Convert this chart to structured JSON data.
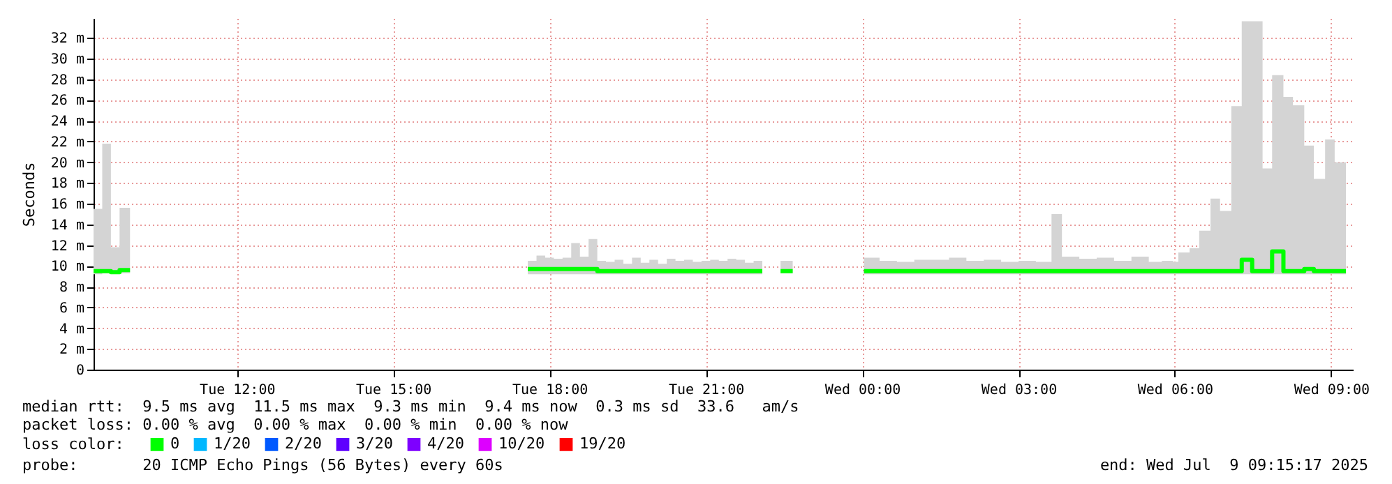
{
  "chart_data": {
    "type": "step",
    "ylabel": "Seconds",
    "legend_title": "loss color:",
    "legend": "bottom",
    "grid": true,
    "xlim": [
      "2025-07-08T09:15",
      "2025-07-09T09:25"
    ],
    "xticks": [
      {
        "value": "2025-07-08T12:00",
        "label": "Tue 12:00"
      },
      {
        "value": "2025-07-08T15:00",
        "label": "Tue 15:00"
      },
      {
        "value": "2025-07-08T18:00",
        "label": "Tue 18:00"
      },
      {
        "value": "2025-07-08T21:00",
        "label": "Tue 21:00"
      },
      {
        "value": "2025-07-09T00:00",
        "label": "Wed 00:00"
      },
      {
        "value": "2025-07-09T03:00",
        "label": "Wed 03:00"
      },
      {
        "value": "2025-07-09T06:00",
        "label": "Wed 06:00"
      },
      {
        "value": "2025-07-09T09:00",
        "label": "Wed 09:00"
      }
    ],
    "ylim": [
      0,
      33.9
    ],
    "yticks": [
      0,
      {
        "value": 2,
        "label": "2 m"
      },
      {
        "value": 4,
        "label": "4 m"
      },
      {
        "value": 6,
        "label": "6 m"
      },
      {
        "value": 8,
        "label": "8 m"
      },
      {
        "value": 10,
        "label": "10 m"
      },
      {
        "value": 12,
        "label": "12 m"
      },
      {
        "value": 14,
        "label": "14 m"
      },
      {
        "value": 16,
        "label": "16 m"
      },
      {
        "value": 18,
        "label": "18 m"
      },
      {
        "value": 20,
        "label": "20 m"
      },
      {
        "value": 22,
        "label": "22 m"
      },
      {
        "value": 24,
        "label": "24 m"
      },
      {
        "value": 26,
        "label": "26 m"
      },
      {
        "value": 28,
        "label": "28 m"
      },
      {
        "value": 30,
        "label": "30 m"
      },
      {
        "value": 32,
        "label": "32 m"
      }
    ],
    "series": [
      {
        "name": "0",
        "color": "#00ff00",
        "x": [
          "2025-07-08T09:15",
          "2025-07-08T09:25",
          "2025-07-08T09:35",
          "2025-07-08T09:45",
          "2025-07-08T09:57",
          "2025-07-08T09:58",
          "2025-07-08T17:35",
          "2025-07-08T17:45",
          "2025-07-08T17:55",
          "2025-07-08T18:05",
          "2025-07-08T18:15",
          "2025-07-08T18:25",
          "2025-07-08T18:35",
          "2025-07-08T18:45",
          "2025-07-08T18:55",
          "2025-07-08T19:05",
          "2025-07-08T19:15",
          "2025-07-08T19:25",
          "2025-07-08T19:35",
          "2025-07-08T19:45",
          "2025-07-08T19:55",
          "2025-07-08T20:05",
          "2025-07-08T20:15",
          "2025-07-08T20:25",
          "2025-07-08T20:35",
          "2025-07-08T20:45",
          "2025-07-08T20:55",
          "2025-07-08T21:05",
          "2025-07-08T21:15",
          "2025-07-08T21:25",
          "2025-07-08T21:35",
          "2025-07-08T21:45",
          "2025-07-08T21:55",
          "2025-07-08T22:05",
          "2025-07-08T22:06",
          "2025-07-08T22:26",
          "2025-07-08T22:40",
          "2025-07-08T22:41",
          "2025-07-09T00:02",
          "2025-07-09T00:20",
          "2025-07-09T00:40",
          "2025-07-09T01:00",
          "2025-07-09T01:20",
          "2025-07-09T01:40",
          "2025-07-09T02:00",
          "2025-07-09T02:20",
          "2025-07-09T02:40",
          "2025-07-09T03:00",
          "2025-07-09T03:20",
          "2025-07-09T03:38",
          "2025-07-09T03:50",
          "2025-07-09T04:10",
          "2025-07-09T04:30",
          "2025-07-09T04:50",
          "2025-07-09T05:10",
          "2025-07-09T05:30",
          "2025-07-09T05:45",
          "2025-07-09T05:58",
          "2025-07-09T06:04",
          "2025-07-09T06:17",
          "2025-07-09T06:28",
          "2025-07-09T06:41",
          "2025-07-09T06:52",
          "2025-07-09T07:05",
          "2025-07-09T07:17",
          "2025-07-09T07:29",
          "2025-07-09T07:41",
          "2025-07-09T07:52",
          "2025-07-09T08:05",
          "2025-07-09T08:16",
          "2025-07-09T08:29",
          "2025-07-09T08:40",
          "2025-07-09T08:53",
          "2025-07-09T09:04",
          "2025-07-09T09:17"
        ],
        "values": [
          9.5,
          9.5,
          9.4,
          9.6,
          9.6,
          null,
          9.7,
          9.7,
          9.7,
          9.7,
          9.7,
          9.7,
          9.7,
          9.7,
          9.5,
          9.5,
          9.5,
          9.5,
          9.5,
          9.5,
          9.5,
          9.5,
          9.5,
          9.5,
          9.5,
          9.5,
          9.5,
          9.5,
          9.5,
          9.5,
          9.5,
          9.5,
          9.5,
          9.5,
          null,
          9.5,
          9.5,
          null,
          9.5,
          9.5,
          9.5,
          9.5,
          9.5,
          9.5,
          9.5,
          9.5,
          9.5,
          9.5,
          9.5,
          9.5,
          9.5,
          9.5,
          9.5,
          9.5,
          9.5,
          9.5,
          9.5,
          9.5,
          9.5,
          9.5,
          9.5,
          9.5,
          9.5,
          9.5,
          10.6,
          9.5,
          9.5,
          11.4,
          9.5,
          9.5,
          9.7,
          9.5,
          9.5,
          9.5,
          9.5
        ],
        "lower": [
          9.2,
          9.3,
          9.3,
          9.3,
          9.3,
          null,
          9.2,
          9.2,
          9.2,
          9.2,
          9.2,
          9.2,
          9.2,
          9.2,
          9.2,
          9.2,
          9.2,
          9.2,
          9.2,
          9.2,
          9.2,
          9.2,
          9.2,
          9.2,
          9.2,
          9.2,
          9.2,
          9.2,
          9.2,
          9.2,
          9.2,
          9.2,
          9.2,
          9.2,
          null,
          9.3,
          9.3,
          null,
          9.2,
          9.2,
          9.2,
          9.2,
          9.2,
          9.2,
          9.2,
          9.2,
          9.2,
          9.2,
          9.2,
          9.2,
          9.2,
          9.2,
          9.2,
          9.2,
          9.2,
          9.2,
          9.2,
          9.2,
          9.2,
          9.2,
          9.2,
          9.2,
          9.2,
          9.2,
          9.2,
          9.2,
          9.2,
          9.2,
          9.2,
          9.2,
          9.2,
          9.2,
          9.2,
          9.2,
          9.2
        ],
        "upper": [
          15.5,
          21.8,
          11.8,
          15.6,
          15.6,
          null,
          10.5,
          11,
          10.8,
          10.7,
          10.8,
          12.2,
          10.9,
          12.6,
          10.5,
          10.4,
          10.6,
          10.2,
          10.8,
          10.3,
          10.6,
          10.2,
          10.7,
          10.5,
          10.6,
          10.4,
          10.5,
          10.6,
          10.5,
          10.7,
          10.6,
          10.3,
          10.5,
          10.5,
          null,
          10.5,
          10.5,
          null,
          10.8,
          10.5,
          10.4,
          10.6,
          10.6,
          10.8,
          10.5,
          10.6,
          10.4,
          10.5,
          10.4,
          15,
          10.9,
          10.7,
          10.8,
          10.5,
          10.9,
          10.4,
          10.5,
          10.4,
          11.3,
          11.7,
          13.4,
          16.5,
          15.3,
          25.4,
          33.6,
          33.6,
          19.4,
          28.4,
          26.3,
          25.5,
          21.6,
          18.4,
          22.2,
          20,
          20
        ]
      },
      {
        "name": "1/20",
        "color": "#00b8ff"
      },
      {
        "name": "2/20",
        "color": "#0059ff"
      },
      {
        "name": "3/20",
        "color": "#5e00ff"
      },
      {
        "name": "4/20",
        "color": "#7e00ff"
      },
      {
        "name": "10/20",
        "color": "#dd00ff"
      },
      {
        "name": "19/20",
        "color": "#ff0000"
      }
    ],
    "annotations": [
      "median rtt:  9.5 ms avg  11.5 ms max  9.3 ms min  9.4 ms now  0.3 ms sd  33.6   am/s",
      "packet loss: 0.00 % avg  0.00 % max  0.00 % min  0.00 % now",
      "probe:       20 ICMP Echo Pings (56 Bytes) every 60s",
      "end: Wed Jul  9 09:15:17 2025"
    ]
  }
}
